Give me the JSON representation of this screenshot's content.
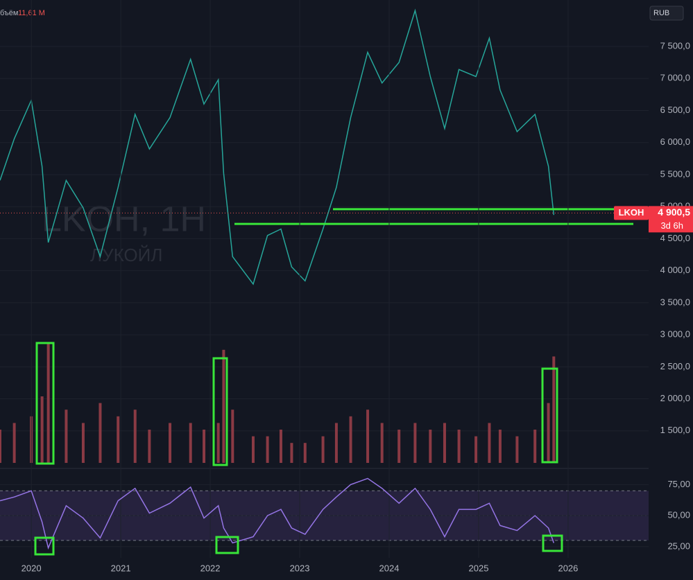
{
  "chart_data": [
    {
      "type": "line",
      "title": "LKOH, 1H",
      "subtitle": "ЛУКОЙЛ",
      "currency": "RUB",
      "x": [
        2019.65,
        2019.81,
        2020.0,
        2020.12,
        2020.19,
        2020.39,
        2020.58,
        2020.77,
        2020.97,
        2021.16,
        2021.32,
        2021.55,
        2021.78,
        2021.93,
        2022.09,
        2022.15,
        2022.25,
        2022.48,
        2022.64,
        2022.79,
        2022.91,
        2023.06,
        2023.26,
        2023.41,
        2023.57,
        2023.76,
        2023.92,
        2024.11,
        2024.29,
        2024.46,
        2024.62,
        2024.78,
        2024.97,
        2025.12,
        2025.24,
        2025.43,
        2025.63,
        2025.78,
        2025.84
      ],
      "values": [
        5410,
        6060,
        6660,
        5630,
        4440,
        5410,
        4980,
        4220,
        5300,
        6440,
        5900,
        6390,
        7300,
        6600,
        6980,
        5520,
        4220,
        3790,
        4550,
        4650,
        4060,
        3840,
        4650,
        5300,
        6390,
        7410,
        6930,
        7250,
        8060,
        7030,
        6220,
        7140,
        7030,
        7630,
        6820,
        6170,
        6440,
        5630,
        4870
      ],
      "color": "#26a69a",
      "levels": [
        4960,
        4730
      ],
      "level_color": "#39e639",
      "last_price": {
        "ticker": "LKOH",
        "value": 4900.5,
        "label": "4 900,5",
        "countdown": "3d 6h"
      },
      "xlim": [
        2019.65,
        2026.9
      ],
      "ylim": [
        1000,
        8225
      ],
      "yticks": [
        {
          "value": 1500,
          "label": "1 500,0"
        },
        {
          "value": 2000,
          "label": "2 000,0"
        },
        {
          "value": 2500,
          "label": "2 500,0"
        },
        {
          "value": 3000,
          "label": "3 000,0"
        },
        {
          "value": 3500,
          "label": "3 500,0"
        },
        {
          "value": 4000,
          "label": "4 000,0"
        },
        {
          "value": 4500,
          "label": "4 500,0"
        },
        {
          "value": 5000,
          "label": "5 000,0"
        },
        {
          "value": 5500,
          "label": "5 500,0"
        },
        {
          "value": 6000,
          "label": "6 000,0"
        },
        {
          "value": 6500,
          "label": "6 500,0"
        },
        {
          "value": 7000,
          "label": "7 000,0"
        },
        {
          "value": 7500,
          "label": "7 500,0"
        }
      ]
    },
    {
      "type": "bar",
      "title": "бъём",
      "last_value": 11.61,
      "last_value_label": "11,61 M",
      "x": [
        2019.65,
        2019.81,
        2020.0,
        2020.12,
        2020.19,
        2020.39,
        2020.58,
        2020.77,
        2020.97,
        2021.16,
        2021.32,
        2021.55,
        2021.78,
        2021.93,
        2022.09,
        2022.15,
        2022.25,
        2022.48,
        2022.64,
        2022.79,
        2022.91,
        2023.06,
        2023.26,
        2023.41,
        2023.57,
        2023.76,
        2023.92,
        2024.11,
        2024.29,
        2024.46,
        2024.62,
        2024.78,
        2024.97,
        2025.12,
        2025.24,
        2025.43,
        2025.63,
        2025.78,
        2025.84
      ],
      "values": [
        5,
        6,
        7,
        10,
        18,
        8,
        6,
        9,
        7,
        8,
        5,
        6,
        6,
        5,
        6,
        17,
        8,
        4,
        4,
        5,
        3,
        3,
        4,
        6,
        7,
        8,
        6,
        5,
        6,
        5,
        6,
        5,
        4,
        6,
        5,
        4,
        5,
        9,
        16
      ],
      "color": "#8a3a44",
      "xlim": [
        2019.65,
        2026.9
      ],
      "ylim": [
        0,
        30
      ]
    },
    {
      "type": "line",
      "x": [
        2019.65,
        2019.81,
        2020.0,
        2020.12,
        2020.19,
        2020.39,
        2020.58,
        2020.77,
        2020.97,
        2021.16,
        2021.32,
        2021.55,
        2021.78,
        2021.93,
        2022.09,
        2022.15,
        2022.25,
        2022.48,
        2022.64,
        2022.79,
        2022.91,
        2023.06,
        2023.26,
        2023.41,
        2023.57,
        2023.76,
        2023.92,
        2024.11,
        2024.29,
        2024.46,
        2024.62,
        2024.78,
        2024.97,
        2025.12,
        2025.24,
        2025.43,
        2025.63,
        2025.78,
        2025.84
      ],
      "values": [
        62,
        65,
        70,
        45,
        24,
        58,
        48,
        32,
        62,
        72,
        52,
        60,
        73,
        48,
        58,
        40,
        28,
        33,
        50,
        55,
        40,
        35,
        55,
        65,
        75,
        80,
        72,
        60,
        72,
        55,
        33,
        55,
        55,
        60,
        42,
        38,
        50,
        40,
        28
      ],
      "color": "#9575e6",
      "band": [
        30,
        70
      ],
      "midline": 50,
      "xlim": [
        2019.65,
        2026.9
      ],
      "ylim": [
        16,
        83
      ],
      "yticks": [
        {
          "value": 25,
          "label": "25,00"
        },
        {
          "value": 50,
          "label": "50,00"
        },
        {
          "value": 75,
          "label": "75,00"
        }
      ],
      "xticks": [
        2020,
        2021,
        2022,
        2023,
        2024,
        2025,
        2026
      ]
    }
  ]
}
